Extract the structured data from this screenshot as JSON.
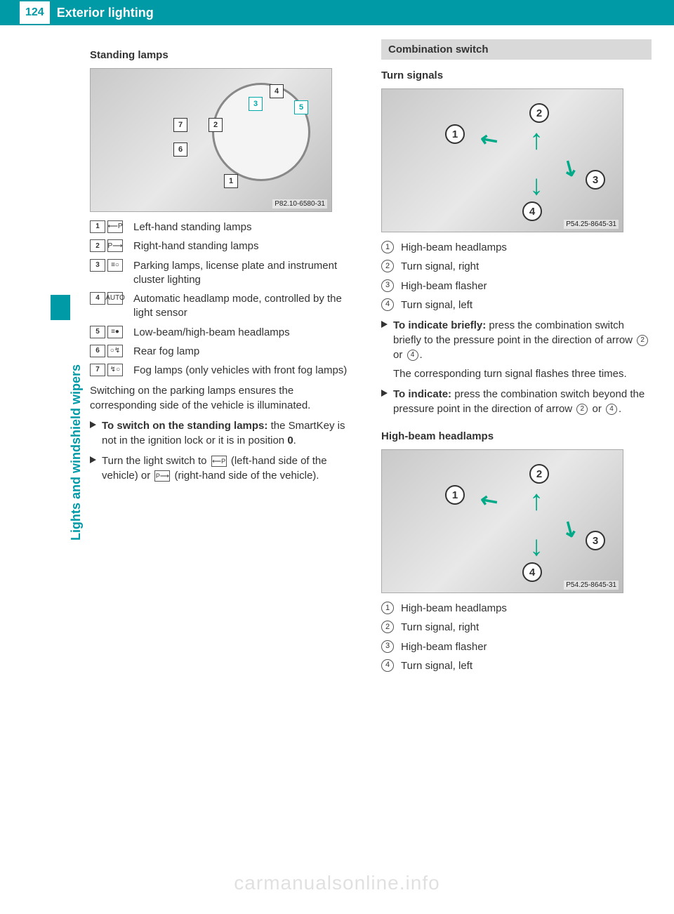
{
  "header": {
    "page_num": "124",
    "title": "Exterior lighting"
  },
  "side_label": "Lights and windshield wipers",
  "left": {
    "h3": "Standing lamps",
    "fig_label": "P82.10-6580-31",
    "legend": [
      {
        "n": "1",
        "sym": "⟵P",
        "text": "Left-hand standing lamps"
      },
      {
        "n": "2",
        "sym": "P⟶",
        "text": "Right-hand standing lamps"
      },
      {
        "n": "3",
        "sym": "≡○",
        "text": "Parking lamps, license plate and instrument cluster lighting"
      },
      {
        "n": "4",
        "sym": "AUTO",
        "text": "Automatic headlamp mode, controlled by the light sensor"
      },
      {
        "n": "5",
        "sym": "≡●",
        "text": "Low-beam/high-beam headlamps"
      },
      {
        "n": "6",
        "sym": "○↯",
        "text": "Rear fog lamp"
      },
      {
        "n": "7",
        "sym": "↯○",
        "text": "Fog lamps (only vehicles with front fog lamps)"
      }
    ],
    "para1": "Switching on the parking lamps ensures the corresponding side of the vehicle is illuminated.",
    "b1_a": "To switch on the standing lamps:",
    "b1_b": " the SmartKey is not in the ignition lock or it is in position ",
    "b1_c": "0",
    "b1_d": ".",
    "b2_a": "Turn the light switch to ",
    "b2_sym1": "⟵P",
    "b2_b": " (left-hand side of the vehicle) or ",
    "b2_sym2": "P⟶",
    "b2_c": " (right-hand side of the vehicle)."
  },
  "right": {
    "section": "Combination switch",
    "h3a": "Turn signals",
    "fig_label": "P54.25-8645-31",
    "legendA": [
      {
        "n": "1",
        "text": "High-beam headlamps"
      },
      {
        "n": "2",
        "text": "Turn signal, right"
      },
      {
        "n": "3",
        "text": "High-beam flasher"
      },
      {
        "n": "4",
        "text": "Turn signal, left"
      }
    ],
    "r1_a": "To indicate briefly:",
    "r1_b": " press the combination switch briefly to the pressure point in the direction of arrow ",
    "r1_n1": "2",
    "r1_c": " or ",
    "r1_n2": "4",
    "r1_d": ".",
    "r1_e": "The corresponding turn signal flashes three times.",
    "r2_a": "To indicate:",
    "r2_b": " press the combination switch beyond the pressure point in the direction of arrow ",
    "r2_n1": "2",
    "r2_c": " or ",
    "r2_n2": "4",
    "r2_d": ".",
    "h3b": "High-beam headlamps",
    "legendB": [
      {
        "n": "1",
        "text": "High-beam headlamps"
      },
      {
        "n": "2",
        "text": "Turn signal, right"
      },
      {
        "n": "3",
        "text": "High-beam flasher"
      },
      {
        "n": "4",
        "text": "Turn signal, left"
      }
    ]
  },
  "watermark": "carmanualsonline.info",
  "colors": {
    "brand": "#009aa6",
    "text": "#333333",
    "section_bg": "#d9d9d9"
  }
}
